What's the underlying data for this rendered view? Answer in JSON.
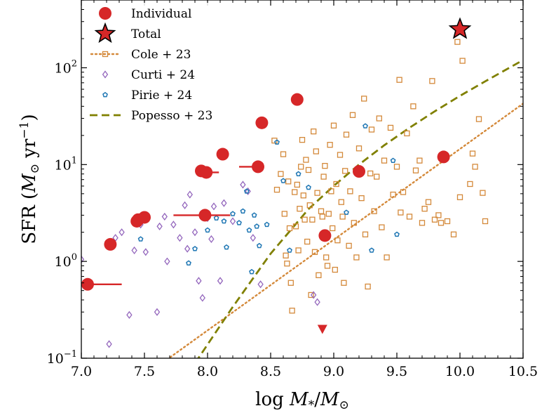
{
  "chart_data": {
    "type": "scatter",
    "xlabel": "log  M*/M⊙",
    "ylabel": "SFR (M⊙ yr⁻¹)",
    "xlim": [
      7.0,
      10.5
    ],
    "ylim_log10": [
      -1,
      2.7
    ],
    "ylog": true,
    "grid": false,
    "legend_placement": "top-left",
    "x_ticks": [
      "7.0",
      "7.5",
      "8.0",
      "8.5",
      "9.0",
      "9.5",
      "10.0",
      "10.5"
    ],
    "x_tick_values": [
      7.0,
      7.5,
      8.0,
      8.5,
      9.0,
      9.5,
      10.0,
      10.5
    ],
    "y_ticks": [
      {
        "value": 0.1,
        "base": "10",
        "exp": "−1"
      },
      {
        "value": 1,
        "base": "10",
        "exp": "0"
      },
      {
        "value": 10,
        "base": "10",
        "exp": "1"
      },
      {
        "value": 100,
        "base": "10",
        "exp": "2"
      }
    ],
    "legend": [
      {
        "key": "individual",
        "label": "Individual"
      },
      {
        "key": "total",
        "label": "Total"
      },
      {
        "key": "cole",
        "label": "Cole + 23"
      },
      {
        "key": "curti",
        "label": "Curti + 24"
      },
      {
        "key": "pirie",
        "label": "Pirie + 24"
      },
      {
        "key": "popesso",
        "label": "Popesso + 23"
      }
    ],
    "colors": {
      "individual": "#d62728",
      "total": "#d62728",
      "cole": "#d4893a",
      "curti": "#9467bd",
      "pirie": "#1f77b4",
      "popesso": "#808000"
    },
    "series": {
      "individual": [
        {
          "x": 7.05,
          "y": 0.58,
          "xerr": [
            0.0,
            0.27
          ]
        },
        {
          "x": 7.23,
          "y": 1.5
        },
        {
          "x": 7.44,
          "y": 2.6
        },
        {
          "x": 7.45,
          "y": 2.7
        },
        {
          "x": 7.5,
          "y": 2.85
        },
        {
          "x": 7.95,
          "y": 8.6
        },
        {
          "x": 7.98,
          "y": 3.0,
          "xerr": [
            0.25,
            0.2
          ]
        },
        {
          "x": 7.99,
          "y": 8.3,
          "xerr": [
            0.0,
            0.1
          ]
        },
        {
          "x": 8.12,
          "y": 12.8
        },
        {
          "x": 8.4,
          "y": 9.5,
          "xerr": [
            0.15,
            0.0
          ]
        },
        {
          "x": 8.43,
          "y": 27
        },
        {
          "x": 8.71,
          "y": 47
        },
        {
          "x": 8.93,
          "y": 1.85
        },
        {
          "x": 9.2,
          "y": 8.5
        },
        {
          "x": 9.87,
          "y": 12
        }
      ],
      "upper_limit": [
        {
          "x": 8.91,
          "y": 0.2
        }
      ],
      "total": [
        {
          "x": 10.0,
          "y": 250
        }
      ],
      "cole": [
        {
          "x": 8.53,
          "y": 17.7
        },
        {
          "x": 8.55,
          "y": 5.5
        },
        {
          "x": 8.58,
          "y": 8.0
        },
        {
          "x": 8.6,
          "y": 12.8
        },
        {
          "x": 8.61,
          "y": 3.1
        },
        {
          "x": 8.62,
          "y": 1.15
        },
        {
          "x": 8.63,
          "y": 0.95
        },
        {
          "x": 8.64,
          "y": 6.7
        },
        {
          "x": 8.65,
          "y": 2.2
        },
        {
          "x": 8.66,
          "y": 0.6
        },
        {
          "x": 8.67,
          "y": 0.31
        },
        {
          "x": 8.69,
          "y": 5.2
        },
        {
          "x": 8.7,
          "y": 2.3
        },
        {
          "x": 8.71,
          "y": 6.2
        },
        {
          "x": 8.72,
          "y": 1.3
        },
        {
          "x": 8.73,
          "y": 3.5
        },
        {
          "x": 8.74,
          "y": 9.5
        },
        {
          "x": 8.75,
          "y": 18
        },
        {
          "x": 8.76,
          "y": 4.8
        },
        {
          "x": 8.77,
          "y": 2.7
        },
        {
          "x": 8.78,
          "y": 11.2
        },
        {
          "x": 8.79,
          "y": 1.6
        },
        {
          "x": 8.8,
          "y": 8.8
        },
        {
          "x": 8.81,
          "y": 3.8
        },
        {
          "x": 8.82,
          "y": 0.45
        },
        {
          "x": 8.83,
          "y": 2.7
        },
        {
          "x": 8.84,
          "y": 22
        },
        {
          "x": 8.85,
          "y": 1.25
        },
        {
          "x": 8.86,
          "y": 13.7
        },
        {
          "x": 8.87,
          "y": 5.1
        },
        {
          "x": 8.88,
          "y": 0.72
        },
        {
          "x": 8.9,
          "y": 3.3
        },
        {
          "x": 8.91,
          "y": 2.9
        },
        {
          "x": 8.92,
          "y": 7.5
        },
        {
          "x": 8.93,
          "y": 9.7
        },
        {
          "x": 8.94,
          "y": 1.1
        },
        {
          "x": 8.95,
          "y": 0.9
        },
        {
          "x": 8.96,
          "y": 3.1
        },
        {
          "x": 8.97,
          "y": 16
        },
        {
          "x": 8.98,
          "y": 5.3
        },
        {
          "x": 8.99,
          "y": 2.2
        },
        {
          "x": 9.0,
          "y": 25.3
        },
        {
          "x": 9.01,
          "y": 0.82
        },
        {
          "x": 9.02,
          "y": 6.3
        },
        {
          "x": 9.03,
          "y": 1.65
        },
        {
          "x": 9.05,
          "y": 12.6
        },
        {
          "x": 9.06,
          "y": 4.1
        },
        {
          "x": 9.07,
          "y": 2.9
        },
        {
          "x": 9.08,
          "y": 0.6
        },
        {
          "x": 9.09,
          "y": 8.6
        },
        {
          "x": 9.1,
          "y": 20.4
        },
        {
          "x": 9.12,
          "y": 1.45
        },
        {
          "x": 9.13,
          "y": 5.3
        },
        {
          "x": 9.15,
          "y": 32.5
        },
        {
          "x": 9.16,
          "y": 2.5
        },
        {
          "x": 9.18,
          "y": 1.1
        },
        {
          "x": 9.2,
          "y": 14.7
        },
        {
          "x": 9.22,
          "y": 4.5
        },
        {
          "x": 9.24,
          "y": 48
        },
        {
          "x": 9.25,
          "y": 1.9
        },
        {
          "x": 9.27,
          "y": 0.55
        },
        {
          "x": 9.29,
          "y": 8.1
        },
        {
          "x": 9.3,
          "y": 23
        },
        {
          "x": 9.32,
          "y": 3.3
        },
        {
          "x": 9.34,
          "y": 7.5
        },
        {
          "x": 9.36,
          "y": 30
        },
        {
          "x": 9.38,
          "y": 2.25
        },
        {
          "x": 9.4,
          "y": 11
        },
        {
          "x": 9.42,
          "y": 1.1
        },
        {
          "x": 9.45,
          "y": 24
        },
        {
          "x": 9.47,
          "y": 4.9
        },
        {
          "x": 9.5,
          "y": 9.5
        },
        {
          "x": 9.52,
          "y": 75
        },
        {
          "x": 9.53,
          "y": 3.2
        },
        {
          "x": 9.55,
          "y": 5.2
        },
        {
          "x": 9.58,
          "y": 21
        },
        {
          "x": 9.6,
          "y": 2.9
        },
        {
          "x": 9.63,
          "y": 40
        },
        {
          "x": 9.65,
          "y": 8.7
        },
        {
          "x": 9.68,
          "y": 11
        },
        {
          "x": 9.7,
          "y": 2.5
        },
        {
          "x": 9.72,
          "y": 3.5
        },
        {
          "x": 9.75,
          "y": 4.1
        },
        {
          "x": 9.78,
          "y": 73
        },
        {
          "x": 9.8,
          "y": 2.7
        },
        {
          "x": 9.83,
          "y": 3.0
        },
        {
          "x": 9.85,
          "y": 2.5
        },
        {
          "x": 9.9,
          "y": 2.6
        },
        {
          "x": 9.95,
          "y": 1.9
        },
        {
          "x": 9.98,
          "y": 185
        },
        {
          "x": 10.02,
          "y": 118
        },
        {
          "x": 10.0,
          "y": 4.6
        },
        {
          "x": 10.1,
          "y": 13
        },
        {
          "x": 10.15,
          "y": 29.5
        },
        {
          "x": 10.12,
          "y": 9.5
        },
        {
          "x": 10.2,
          "y": 2.6
        },
        {
          "x": 10.18,
          "y": 5.1
        },
        {
          "x": 10.08,
          "y": 6.3
        }
      ],
      "curti": [
        {
          "x": 7.0,
          "y": 1.05
        },
        {
          "x": 7.22,
          "y": 0.14
        },
        {
          "x": 7.27,
          "y": 1.75
        },
        {
          "x": 7.32,
          "y": 2.0
        },
        {
          "x": 7.38,
          "y": 0.28
        },
        {
          "x": 7.42,
          "y": 1.3
        },
        {
          "x": 7.47,
          "y": 2.4
        },
        {
          "x": 7.51,
          "y": 1.25
        },
        {
          "x": 7.6,
          "y": 0.3
        },
        {
          "x": 7.62,
          "y": 2.3
        },
        {
          "x": 7.66,
          "y": 2.9
        },
        {
          "x": 7.68,
          "y": 1.0
        },
        {
          "x": 7.73,
          "y": 2.4
        },
        {
          "x": 7.78,
          "y": 1.75
        },
        {
          "x": 7.82,
          "y": 3.8
        },
        {
          "x": 7.84,
          "y": 1.35
        },
        {
          "x": 7.86,
          "y": 4.9
        },
        {
          "x": 7.9,
          "y": 2.0
        },
        {
          "x": 7.93,
          "y": 0.63
        },
        {
          "x": 7.96,
          "y": 0.42
        },
        {
          "x": 8.0,
          "y": 2.8
        },
        {
          "x": 8.03,
          "y": 1.7
        },
        {
          "x": 8.05,
          "y": 3.7
        },
        {
          "x": 8.1,
          "y": 0.63
        },
        {
          "x": 8.13,
          "y": 4.0
        },
        {
          "x": 8.2,
          "y": 2.6
        },
        {
          "x": 8.28,
          "y": 6.2
        },
        {
          "x": 8.32,
          "y": 5.3
        },
        {
          "x": 8.36,
          "y": 1.75
        },
        {
          "x": 8.42,
          "y": 0.58
        },
        {
          "x": 8.84,
          "y": 0.45
        },
        {
          "x": 8.87,
          "y": 0.38
        }
      ],
      "pirie": [
        {
          "x": 7.47,
          "y": 1.7
        },
        {
          "x": 7.85,
          "y": 0.96
        },
        {
          "x": 7.9,
          "y": 1.35
        },
        {
          "x": 8.0,
          "y": 2.1
        },
        {
          "x": 8.07,
          "y": 2.8
        },
        {
          "x": 8.13,
          "y": 2.6
        },
        {
          "x": 8.15,
          "y": 1.4
        },
        {
          "x": 8.2,
          "y": 3.1
        },
        {
          "x": 8.25,
          "y": 2.5
        },
        {
          "x": 8.28,
          "y": 3.3
        },
        {
          "x": 8.31,
          "y": 5.3
        },
        {
          "x": 8.33,
          "y": 2.1
        },
        {
          "x": 8.35,
          "y": 0.78
        },
        {
          "x": 8.37,
          "y": 3.0
        },
        {
          "x": 8.39,
          "y": 2.3
        },
        {
          "x": 8.41,
          "y": 1.45
        },
        {
          "x": 8.47,
          "y": 2.4
        },
        {
          "x": 8.55,
          "y": 17
        },
        {
          "x": 8.6,
          "y": 6.8
        },
        {
          "x": 8.65,
          "y": 1.3
        },
        {
          "x": 8.72,
          "y": 8.0
        },
        {
          "x": 8.8,
          "y": 5.8
        },
        {
          "x": 9.1,
          "y": 3.2
        },
        {
          "x": 9.25,
          "y": 25
        },
        {
          "x": 9.3,
          "y": 1.3
        },
        {
          "x": 9.47,
          "y": 11
        },
        {
          "x": 9.5,
          "y": 1.9
        }
      ],
      "cole_line": {
        "x": [
          7.0,
          10.5
        ],
        "log_y": [
          -1.65,
          1.63
        ]
      },
      "popesso_curve": {
        "x": [
          7.85,
          8.2,
          8.5,
          8.8,
          9.0,
          9.2,
          9.4,
          9.6,
          9.8,
          10.0,
          10.2,
          10.5
        ],
        "log_y": [
          -1.15,
          -0.47,
          0.08,
          0.54,
          0.78,
          1.0,
          1.2,
          1.38,
          1.55,
          1.71,
          1.86,
          2.08
        ]
      }
    }
  }
}
